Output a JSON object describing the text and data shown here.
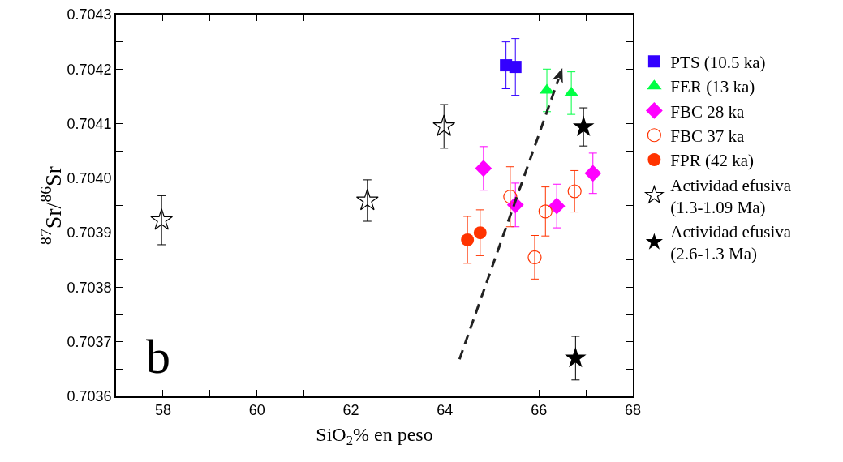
{
  "chart_data": {
    "type": "scatter",
    "xlabel": "SiO$_{2}$% en peso",
    "ylabel": "$^{87}$Sr/$^{86}$Sr",
    "annotations": [
      "b"
    ],
    "xlim": [
      57,
      68
    ],
    "ylim": [
      0.7036,
      0.7043
    ],
    "xticks": [
      {
        "value": 57,
        "label": null
      },
      58,
      {
        "value": 59,
        "label": null
      },
      60,
      {
        "value": 61,
        "label": null
      },
      62,
      {
        "value": 63,
        "label": null
      },
      64,
      {
        "value": 65,
        "label": null
      },
      66,
      {
        "value": 67,
        "label": null
      },
      68
    ],
    "yticks": [
      0.7036,
      {
        "value": 0.70365,
        "label": null
      },
      0.7037,
      {
        "value": 0.70375,
        "label": null
      },
      0.7038,
      {
        "value": 0.70385,
        "label": null
      },
      0.7039,
      {
        "value": 0.70395,
        "label": null
      },
      {
        "value": 0.704,
        "label": "0.7040"
      },
      {
        "value": 0.70405,
        "label": null
      },
      0.7041,
      {
        "value": 0.70415,
        "label": null
      },
      0.7042,
      {
        "value": 0.70425,
        "label": null
      },
      0.7043
    ],
    "grid": false,
    "legend": "right",
    "series": [
      {
        "name": "PTS (10.5 ka)",
        "color": "#3300ff",
        "marker": "square",
        "x": [
          65.3,
          65.5
        ],
        "values": [
          0.704207,
          0.704204
        ],
        "errors": [
          4.3e-05,
          5.2e-05
        ]
      },
      {
        "name": "FER (13 ka)",
        "color": "#00ff44",
        "marker": "triangle",
        "x": [
          66.17,
          66.69
        ],
        "values": [
          0.704161,
          0.704156
        ],
        "errors": [
          3.9e-05,
          3.9e-05
        ]
      },
      {
        "name": "FBC 28 ka",
        "color": "#ff00ff",
        "marker": "diamond",
        "x": [
          64.82,
          65.5,
          66.38,
          67.15
        ],
        "values": [
          0.704018,
          0.703951,
          0.703949,
          0.704009
        ],
        "errors": [
          4e-05,
          4e-05,
          4e-05,
          3.7e-05
        ]
      },
      {
        "name": "FBC 37 ka",
        "color": "#ff3300",
        "marker": "circle-open",
        "x": [
          65.39,
          66.14,
          65.91,
          66.76
        ],
        "values": [
          0.703966,
          0.703939,
          0.703855,
          0.703976
        ],
        "errors": [
          5.5e-05,
          4.5e-05,
          4e-05,
          3.8e-05
        ]
      },
      {
        "name": "FPR (42 ka)",
        "color": "#ff3300",
        "marker": "circle",
        "x": [
          64.48,
          64.75
        ],
        "values": [
          0.703887,
          0.7039
        ],
        "errors": [
          4.3e-05,
          4.2e-05
        ]
      },
      {
        "name": "Actividad efusiva\n(1.3-1.09 Ma)",
        "color": "#000000",
        "marker": "star-open",
        "x": [
          57.97,
          62.35,
          63.98
        ],
        "values": [
          0.703923,
          0.703959,
          0.704095
        ],
        "errors": [
          4.5e-05,
          3.8e-05,
          4e-05
        ]
      },
      {
        "name": "Actividad efusiva\n(2.6-1.3 Ma)",
        "color": "#000000",
        "marker": "star",
        "x": [
          66.95,
          66.78
        ],
        "values": [
          0.704094,
          0.70367
        ],
        "errors": [
          3.5e-05,
          4e-05
        ]
      }
    ]
  }
}
